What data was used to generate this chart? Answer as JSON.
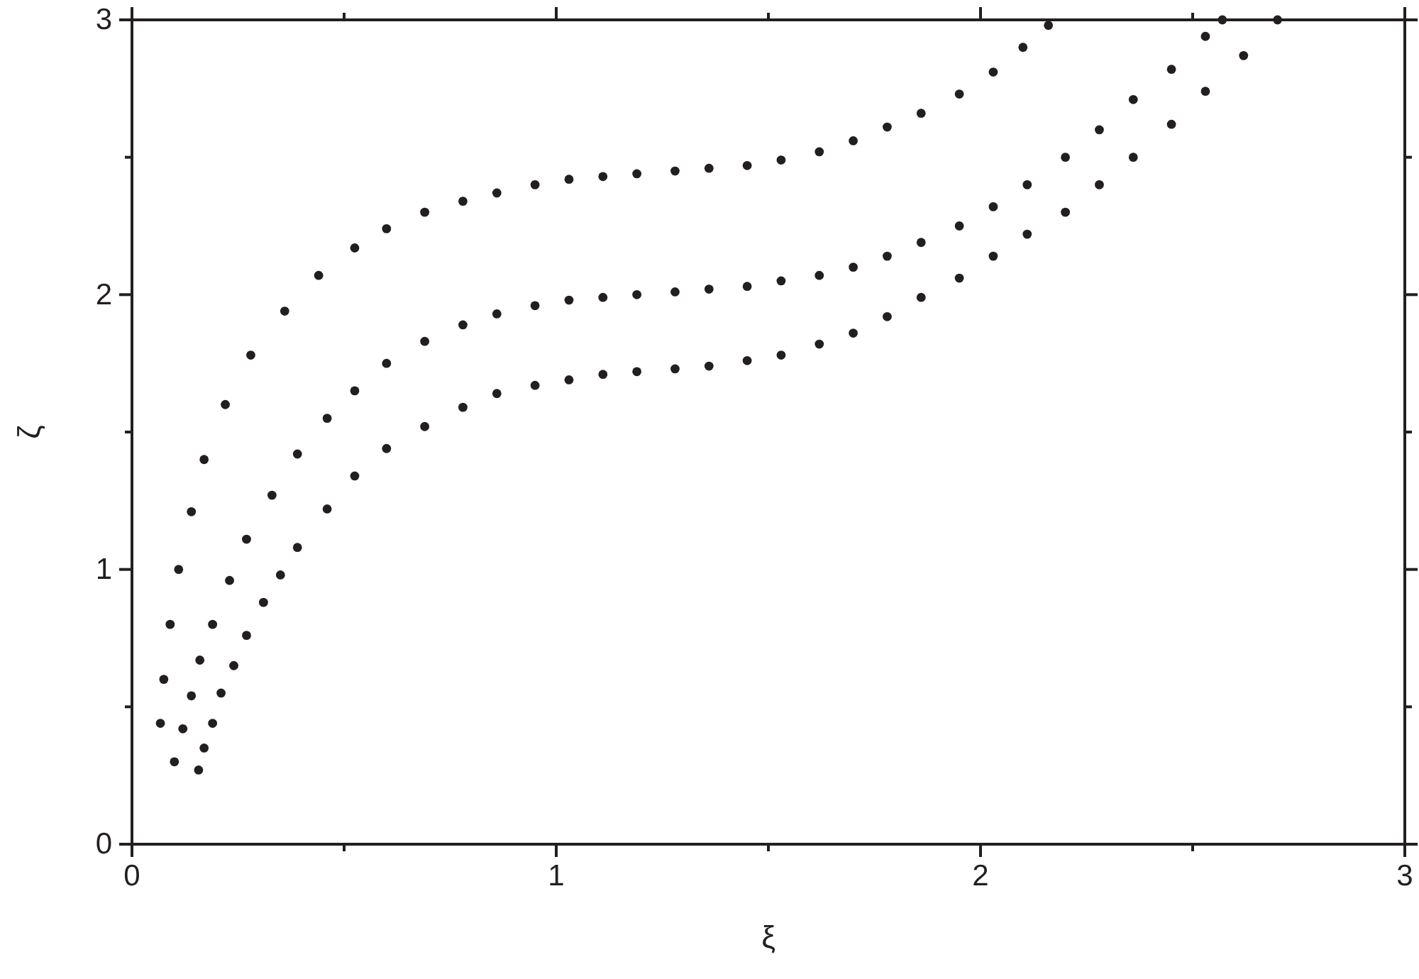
{
  "chart_data": {
    "type": "scatter",
    "xlabel": "ξ",
    "ylabel": "ζ",
    "xlim": [
      0,
      3
    ],
    "ylim": [
      0,
      3
    ],
    "xticks": [
      0,
      {
        "value": 0.5,
        "label": null
      },
      1,
      {
        "value": 1.5,
        "label": null
      },
      2,
      {
        "value": 2.5,
        "label": null
      },
      3
    ],
    "yticks": [
      0,
      {
        "value": 0.5,
        "label": null
      },
      1,
      {
        "value": 1.5,
        "label": null
      },
      2,
      {
        "value": 2.5,
        "label": null
      },
      3
    ],
    "marker": "circle",
    "series": [
      {
        "color": "#231f20",
        "x": [
          0.067,
          0.075,
          0.09,
          0.11,
          0.14,
          0.17,
          0.22,
          0.28,
          0.36,
          0.44,
          0.525,
          0.6,
          0.69,
          0.78,
          0.86,
          0.95,
          1.03,
          1.11,
          1.19,
          1.28,
          1.36,
          1.45,
          1.53,
          1.62,
          1.7,
          1.78,
          1.86,
          1.95,
          2.03,
          2.1,
          2.16
        ],
        "values": [
          0.44,
          0.6,
          0.8,
          1.0,
          1.21,
          1.4,
          1.6,
          1.78,
          1.94,
          2.07,
          2.17,
          2.24,
          2.3,
          2.34,
          2.37,
          2.4,
          2.42,
          2.43,
          2.44,
          2.45,
          2.46,
          2.47,
          2.49,
          2.52,
          2.56,
          2.61,
          2.66,
          2.73,
          2.81,
          2.9,
          2.98
        ]
      },
      {
        "color": "#231f20",
        "x": [
          0.1,
          0.12,
          0.14,
          0.16,
          0.19,
          0.23,
          0.27,
          0.33,
          0.39,
          0.46,
          0.525,
          0.6,
          0.69,
          0.78,
          0.86,
          0.95,
          1.03,
          1.11,
          1.19,
          1.28,
          1.36,
          1.45,
          1.53,
          1.62,
          1.7,
          1.78,
          1.86,
          1.95,
          2.03,
          2.11,
          2.2,
          2.28,
          2.36,
          2.45,
          2.53,
          2.57
        ],
        "values": [
          0.3,
          0.42,
          0.54,
          0.67,
          0.8,
          0.96,
          1.11,
          1.27,
          1.42,
          1.55,
          1.65,
          1.75,
          1.83,
          1.89,
          1.93,
          1.96,
          1.98,
          1.99,
          2.0,
          2.01,
          2.02,
          2.03,
          2.05,
          2.07,
          2.1,
          2.14,
          2.19,
          2.25,
          2.32,
          2.4,
          2.5,
          2.6,
          2.71,
          2.82,
          2.94,
          3.0
        ]
      },
      {
        "color": "#231f20",
        "x": [
          0.157,
          0.17,
          0.19,
          0.21,
          0.24,
          0.27,
          0.31,
          0.35,
          0.39,
          0.46,
          0.525,
          0.6,
          0.69,
          0.78,
          0.86,
          0.95,
          1.03,
          1.11,
          1.19,
          1.28,
          1.36,
          1.45,
          1.53,
          1.62,
          1.7,
          1.78,
          1.86,
          1.95,
          2.03,
          2.11,
          2.2,
          2.28,
          2.36,
          2.45,
          2.53,
          2.62,
          2.7
        ],
        "values": [
          0.27,
          0.35,
          0.44,
          0.55,
          0.65,
          0.76,
          0.88,
          0.98,
          1.08,
          1.22,
          1.34,
          1.44,
          1.52,
          1.59,
          1.64,
          1.67,
          1.69,
          1.71,
          1.72,
          1.73,
          1.74,
          1.76,
          1.78,
          1.82,
          1.86,
          1.92,
          1.99,
          2.06,
          2.14,
          2.22,
          2.3,
          2.4,
          2.5,
          2.62,
          2.74,
          2.87,
          3.0
        ]
      }
    ]
  }
}
